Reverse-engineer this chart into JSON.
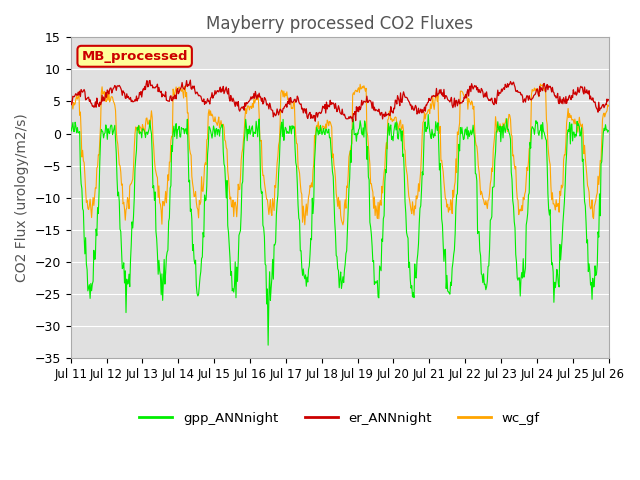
{
  "title": "Mayberry processed CO2 Fluxes",
  "ylabel": "CO2 Flux (urology/m2/s)",
  "ylim": [
    -35,
    15
  ],
  "yticks": [
    15,
    10,
    5,
    0,
    -5,
    -10,
    -15,
    -20,
    -25,
    -30,
    -35
  ],
  "date_labels": [
    "Jul 11",
    "Jul 12",
    "Jul 13",
    "Jul 14",
    "Jul 15",
    "Jul 16",
    "Jul 17",
    "Jul 18",
    "Jul 19",
    "Jul 20",
    "Jul 21",
    "Jul 22",
    "Jul 23",
    "Jul 24",
    "Jul 25",
    "Jul 26"
  ],
  "n_days": 15,
  "background_color": "#e0e0e0",
  "legend_box_color": "#ffff99",
  "legend_box_edge": "#cc0000",
  "legend_text": "MB_processed",
  "gpp_color": "#00ee00",
  "er_color": "#cc0000",
  "wc_color": "#ffa500",
  "title_fontsize": 12,
  "axis_fontsize": 10,
  "legend_labels": [
    "gpp_ANNnight",
    "er_ANNnight",
    "wc_gf"
  ]
}
